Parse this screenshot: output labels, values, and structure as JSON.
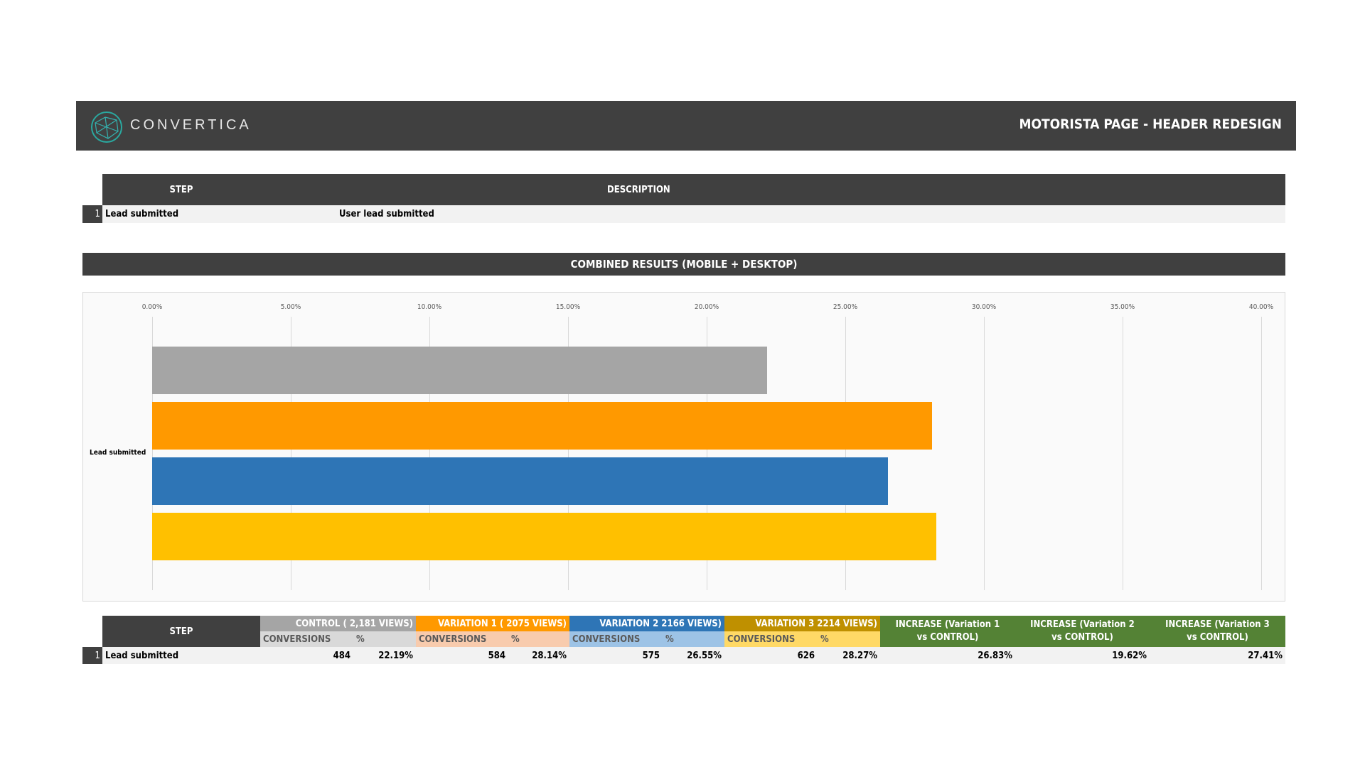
{
  "header": {
    "logo_text": "CONVERTICA",
    "title": "MOTORISTA PAGE - HEADER REDESIGN"
  },
  "steps_table": {
    "headers": [
      "STEP",
      "DESCRIPTION"
    ],
    "rows": [
      {
        "num": "1",
        "step": "Lead submitted",
        "description": "User lead submitted"
      }
    ]
  },
  "section_title": "COMBINED RESULTS (MOBILE + DESKTOP)",
  "chart_data": {
    "type": "bar",
    "orientation": "horizontal",
    "categories": [
      "Lead submitted"
    ],
    "series": [
      {
        "values": [
          22.19
        ],
        "color": "#a5a5a5"
      },
      {
        "values": [
          28.14
        ],
        "color": "#ff9900"
      },
      {
        "values": [
          26.55
        ],
        "color": "#2e75b6"
      },
      {
        "values": [
          28.27
        ],
        "color": "#ffc000"
      }
    ],
    "xlim": [
      0,
      40
    ],
    "tick_labels": [
      "0.00%",
      "5.00%",
      "10.00%",
      "15.00%",
      "20.00%",
      "25.00%",
      "30.00%",
      "35.00%",
      "40.00%"
    ],
    "grid": true
  },
  "results_table": {
    "step_header": "STEP",
    "groups": [
      {
        "label": "CONTROL (   2,181    VIEWS)",
        "sub": [
          "CONVERSIONS",
          "%"
        ],
        "color": "#a5a5a5",
        "sub_color": "#d9d9d9"
      },
      {
        "label": "VARIATION 1 (    2075   VIEWS)",
        "sub": [
          "CONVERSIONS",
          "%"
        ],
        "color": "#ff9900",
        "sub_color": "#f8cbad"
      },
      {
        "label": "VARIATION 2     2166   VIEWS)",
        "sub": [
          "CONVERSIONS",
          "%"
        ],
        "color": "#2e75b6",
        "sub_color": "#9dc3e6"
      },
      {
        "label": "VARIATION 3     2214   VIEWS)",
        "sub": [
          "CONVERSIONS",
          "%"
        ],
        "color": "#bf9000",
        "sub_color": "#ffd966"
      }
    ],
    "increase_headers": [
      "INCREASE (Variation 1 vs CONTROL)",
      "INCREASE (Variation 2 vs CONTROL)",
      "INCREASE (Variation 3 vs CONTROL)"
    ],
    "increase_color": "#548235",
    "rows": [
      {
        "num": "1",
        "step": "Lead submitted",
        "values": [
          "484",
          "22.19%",
          "584",
          "28.14%",
          "575",
          "26.55%",
          "626",
          "28.27%"
        ],
        "increases": [
          "26.83%",
          "19.62%",
          "27.41%"
        ]
      }
    ]
  }
}
